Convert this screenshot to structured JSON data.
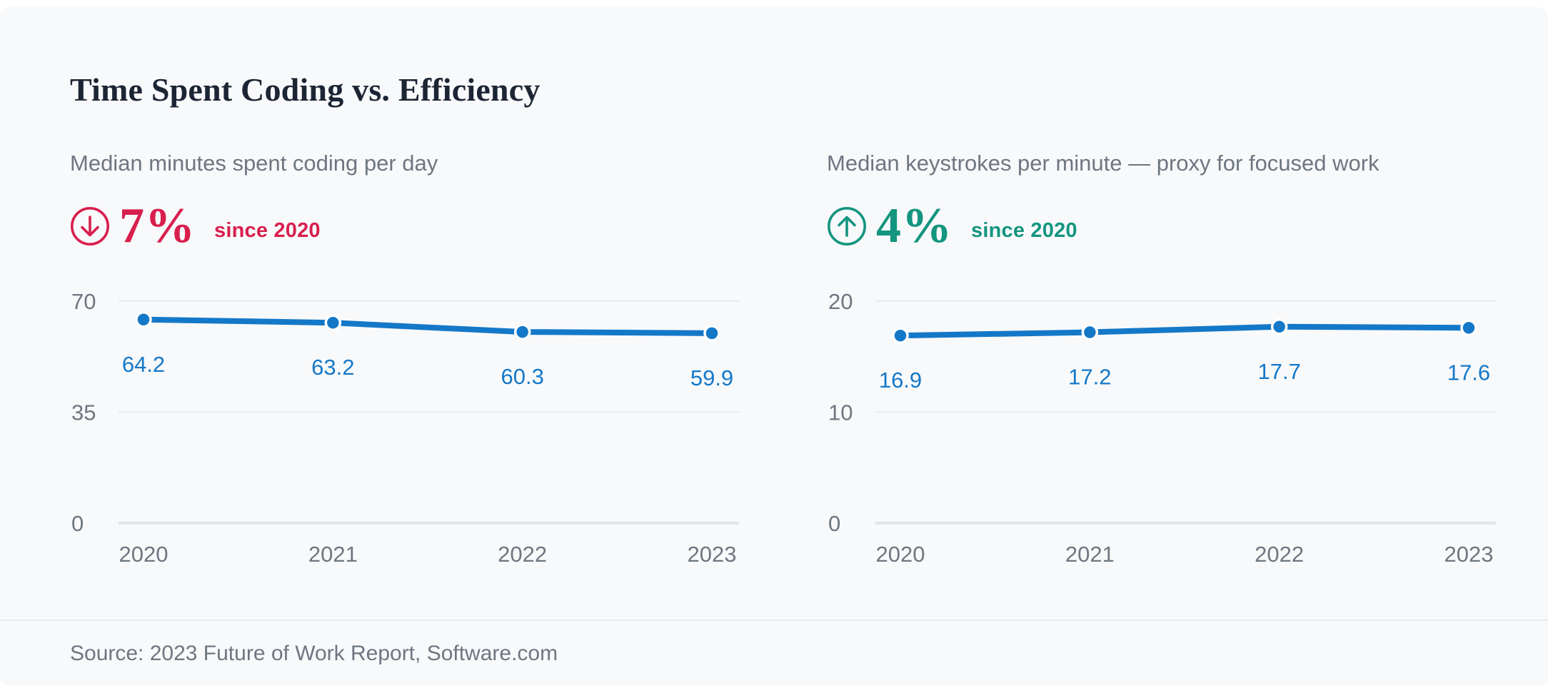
{
  "page": {
    "title": "Time Spent Coding vs. Efficiency",
    "source": "Source: 2023 Future of Work Report, Software.com"
  },
  "colors": {
    "background": "#f8f9fb",
    "title": "#1c2533",
    "muted": "#6e7681",
    "line": "#1478c8",
    "decrease": "#d81f4d",
    "increase": "#14957f",
    "grid": "#e7e9ec",
    "grid_zero": "#e1e4e8"
  },
  "chart_data": [
    {
      "type": "line",
      "title": "Median minutes spent coding per day",
      "x": [
        "2020",
        "2021",
        "2022",
        "2023"
      ],
      "values": [
        64.2,
        63.2,
        60.3,
        59.9
      ],
      "point_labels": [
        "64.2",
        "63.2",
        "60.3",
        "59.9"
      ],
      "yticks": [
        70,
        35,
        0
      ],
      "ylim": [
        0,
        70
      ],
      "grid": true,
      "legend": false,
      "annotation": {
        "delta": "7%",
        "direction": "down",
        "caption": "since 2020",
        "icon": "circle-arrow-down-icon"
      }
    },
    {
      "type": "line",
      "title": "Median keystrokes per minute — proxy for focused work",
      "x": [
        "2020",
        "2021",
        "2022",
        "2023"
      ],
      "values": [
        16.9,
        17.2,
        17.7,
        17.6
      ],
      "point_labels": [
        "16.9",
        "17.2",
        "17.7",
        "17.6"
      ],
      "yticks": [
        20,
        10,
        0
      ],
      "ylim": [
        0,
        20
      ],
      "grid": true,
      "legend": false,
      "annotation": {
        "delta": "4%",
        "direction": "up",
        "caption": "since 2020",
        "icon": "circle-arrow-up-icon"
      }
    }
  ]
}
